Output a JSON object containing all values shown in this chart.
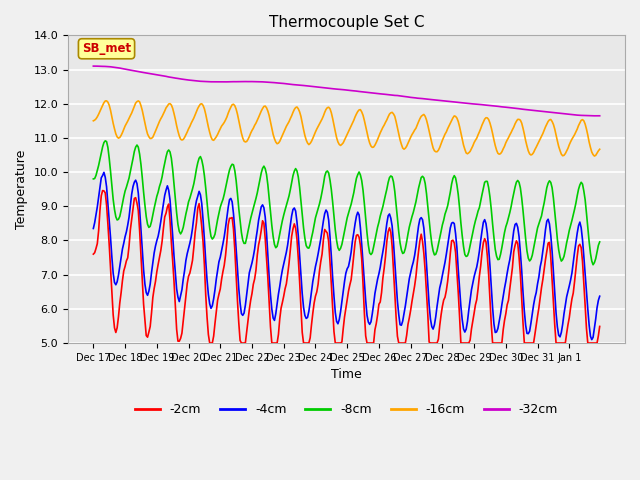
{
  "title": "Thermocouple Set C",
  "xlabel": "Time",
  "ylabel": "Temperature",
  "ylim": [
    5.0,
    14.0
  ],
  "yticks": [
    5.0,
    6.0,
    7.0,
    8.0,
    9.0,
    10.0,
    11.0,
    12.0,
    13.0,
    14.0
  ],
  "x_labels": [
    "Dec 17",
    "Dec 18",
    "Dec 19",
    "Dec 20",
    "Dec 21",
    "Dec 22",
    "Dec 23",
    "Dec 24",
    "Dec 25",
    "Dec 26",
    "Dec 27",
    "Dec 28",
    "Dec 29",
    "Dec 30",
    "Dec 31",
    "Jan 1"
  ],
  "colors": {
    "-2cm": "#ff0000",
    "-4cm": "#0000ff",
    "-8cm": "#00cc00",
    "-16cm": "#ffa500",
    "-32cm": "#cc00cc"
  },
  "legend_labels": [
    "-2cm",
    "-4cm",
    "-8cm",
    "-16cm",
    "-32cm"
  ],
  "sb_met_box_color": "#ffff99",
  "sb_met_text_color": "#cc0000",
  "background_color": "#f0f0f0",
  "plot_bg_color": "#e8e8e8",
  "grid_color": "#ffffff",
  "title_fontsize": 11,
  "label_fontsize": 9,
  "tick_fontsize": 8,
  "figsize": [
    6.4,
    4.8
  ],
  "dpi": 100
}
